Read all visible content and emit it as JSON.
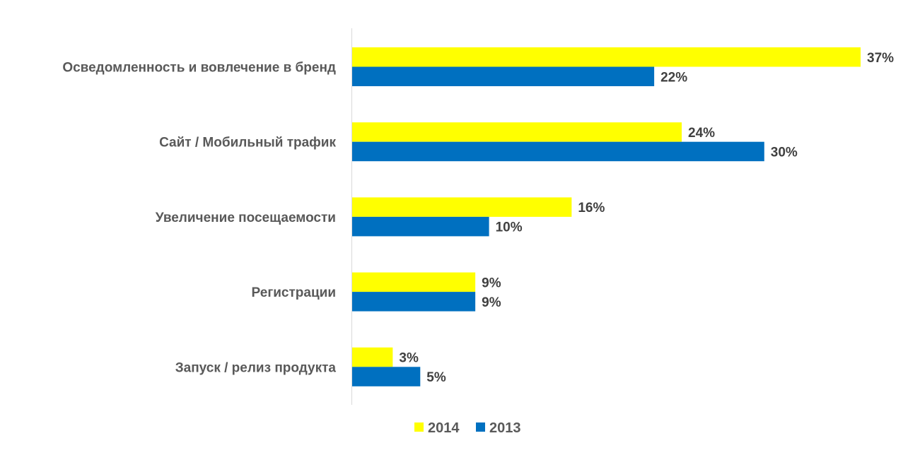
{
  "chart_data": {
    "type": "bar",
    "orientation": "horizontal",
    "title": "",
    "xlabel": "",
    "ylabel": "",
    "xlim": [
      0,
      37
    ],
    "grid": false,
    "legend_position": "bottom",
    "categories": [
      "Осведомленность и вовлечение в бренд",
      "Сайт / Мобильный трафик",
      "Увеличение посещаемости",
      "Регистрации",
      "Запуск / релиз продукта"
    ],
    "series": [
      {
        "name": "2014",
        "color": "#FFFF00",
        "values": [
          37,
          24,
          16,
          9,
          3
        ],
        "labels": [
          "37%",
          "24%",
          "16%",
          "9%",
          "3%"
        ]
      },
      {
        "name": "2013",
        "color": "#0070C0",
        "values": [
          22,
          30,
          10,
          9,
          5
        ],
        "labels": [
          "22%",
          "30%",
          "10%",
          "9%",
          "5%"
        ]
      }
    ]
  }
}
